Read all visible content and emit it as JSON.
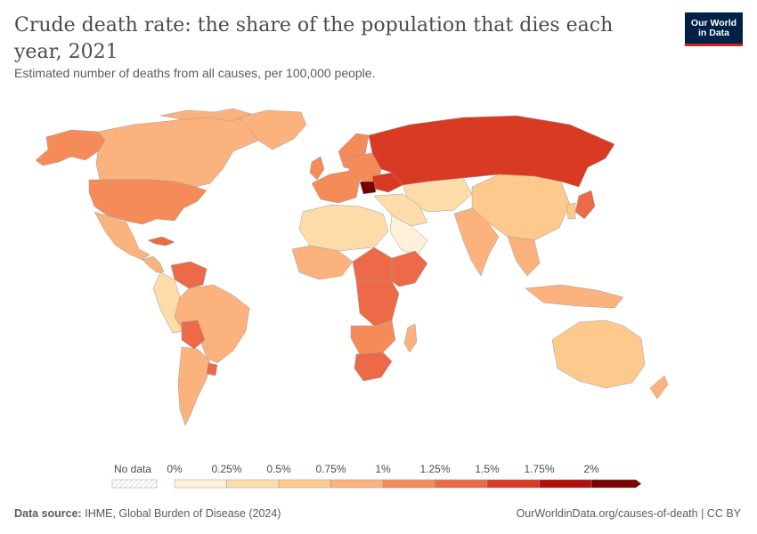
{
  "header": {
    "title": "Crude death rate: the share of the population that dies each year, 2021",
    "subtitle": "Estimated number of deaths from all causes, per 100,000 people."
  },
  "logo": {
    "line1": "Our World",
    "line2": "in Data"
  },
  "legend": {
    "no_data_label": "No data",
    "tick_labels": [
      "0%",
      "0.25%",
      "0.5%",
      "0.75%",
      "1%",
      "1.25%",
      "1.5%",
      "1.75%",
      "2%"
    ],
    "bin_colors": [
      "#fef0d9",
      "#fddcaa",
      "#fdc98c",
      "#fcb27d",
      "#f68b5a",
      "#ec6a47",
      "#d93a24",
      "#b30d0c",
      "#7a0000"
    ]
  },
  "map_regions": [
    {
      "name": "United States",
      "color": "#f68b5a"
    },
    {
      "name": "Canada",
      "color": "#fcb27d"
    },
    {
      "name": "Alaska",
      "color": "#f68b5a"
    },
    {
      "name": "Greenland",
      "color": "#fcb27d"
    },
    {
      "name": "Mexico",
      "color": "#fcb27d"
    },
    {
      "name": "Cuba",
      "color": "#ec6a47"
    },
    {
      "name": "Venezuela",
      "color": "#ec6a47"
    },
    {
      "name": "Colombia",
      "color": "#fddcaa"
    },
    {
      "name": "Brazil",
      "color": "#fcb27d"
    },
    {
      "name": "Bolivia",
      "color": "#ec6a47"
    },
    {
      "name": "Argentina",
      "color": "#fcb27d"
    },
    {
      "name": "Uruguay",
      "color": "#ec6a47"
    },
    {
      "name": "Russia",
      "color": "#d93a24"
    },
    {
      "name": "Ukraine",
      "color": "#d93a24"
    },
    {
      "name": "Bulgaria",
      "color": "#7a0000"
    },
    {
      "name": "Europe",
      "color": "#f68b5a"
    },
    {
      "name": "China",
      "color": "#fdc98c"
    },
    {
      "name": "India",
      "color": "#fcb27d"
    },
    {
      "name": "Middle East",
      "color": "#fddcaa"
    },
    {
      "name": "Saudi Arabia",
      "color": "#fef0d9"
    },
    {
      "name": "North Africa",
      "color": "#fddcaa"
    },
    {
      "name": "West Africa",
      "color": "#fcb27d"
    },
    {
      "name": "Central Africa",
      "color": "#ec6a47"
    },
    {
      "name": "Somalia",
      "color": "#ec6a47"
    },
    {
      "name": "Southern Africa",
      "color": "#f68b5a"
    },
    {
      "name": "South Africa",
      "color": "#ec6a47"
    },
    {
      "name": "Australia",
      "color": "#fdc98c"
    },
    {
      "name": "Japan",
      "color": "#ec6a47"
    },
    {
      "name": "Southeast Asia",
      "color": "#fcb27d"
    },
    {
      "name": "New Zealand",
      "color": "#fcb27d"
    }
  ],
  "footer": {
    "source_label": "Data source:",
    "source_text": "IHME, Global Burden of Disease (2024)",
    "url_text": "OurWorldinData.org/causes-of-death | CC BY"
  }
}
